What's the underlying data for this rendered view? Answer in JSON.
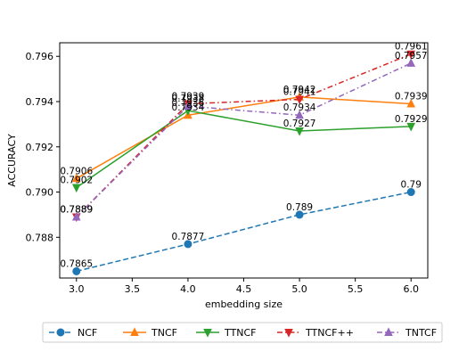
{
  "chart_data": {
    "type": "line",
    "xlabel": "embedding size",
    "ylabel": "ACCURACY",
    "xlim": [
      2.85,
      6.15
    ],
    "ylim": [
      0.7862,
      0.7966
    ],
    "xticks": [
      3.0,
      3.5,
      4.0,
      4.5,
      5.0,
      5.5,
      6.0
    ],
    "xtick_labels": [
      "3.0",
      "3.5",
      "4.0",
      "4.5",
      "5.0",
      "5.5",
      "6.0"
    ],
    "yticks": [
      0.788,
      0.79,
      0.792,
      0.794,
      0.796
    ],
    "ytick_labels": [
      "0.788",
      "0.790",
      "0.792",
      "0.794",
      "0.796"
    ],
    "x": [
      3.0,
      4.0,
      5.0,
      6.0
    ],
    "legend_position": "bottom",
    "grid": false,
    "series": [
      {
        "name": "NCF",
        "values": [
          0.7865,
          0.7877,
          0.789,
          0.79
        ],
        "labels": [
          "0.7865",
          "0.7877",
          "0.789",
          "0.79"
        ],
        "color": "#1f77b4",
        "dash": "dashed",
        "marker": "circle"
      },
      {
        "name": "TNCF",
        "values": [
          0.7906,
          0.7934,
          0.7942,
          0.7939
        ],
        "labels": [
          "0.7906",
          "0.7934",
          "0.7942",
          "0.7939"
        ],
        "color": "#ff7f0e",
        "dash": "solid",
        "marker": "triangle-up"
      },
      {
        "name": "TTNCF",
        "values": [
          0.7902,
          0.7936,
          0.7927,
          0.7929
        ],
        "labels": [
          "0.7902",
          "0.7936",
          "0.7927",
          "0.7929"
        ],
        "color": "#2ca02c",
        "dash": "solid",
        "marker": "triangle-down"
      },
      {
        "name": "TTNCF++",
        "values": [
          0.7889,
          0.7939,
          0.7941,
          0.7961
        ],
        "labels": [
          "0.7889",
          "0.7939",
          "0.7941",
          "0.7961"
        ],
        "color": "#d62728",
        "dash": "dashdot",
        "marker": "triangle-down"
      },
      {
        "name": "TNTCF",
        "values": [
          0.7889,
          0.7938,
          0.7934,
          0.7957
        ],
        "labels": [
          "0.7889",
          "0.7938",
          "0.7934",
          "0.7957"
        ],
        "color": "#9467bd",
        "dash": "dashdot",
        "marker": "triangle-up"
      }
    ]
  }
}
